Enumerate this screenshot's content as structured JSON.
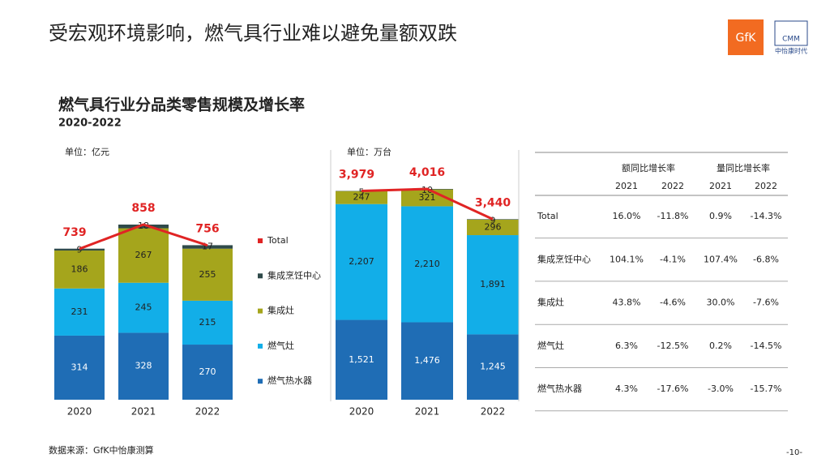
{
  "header": {
    "title": "受宏观环境影响，燃气具行业难以避免量额双跌",
    "logo": "GfK",
    "logo2": "CMM",
    "logo2_sub": "中怡康时代"
  },
  "heading": "燃气具行业分品类零售规模及增长率",
  "subheading": "2020-2022",
  "chart_data": [
    {
      "type": "bar",
      "stacked": true,
      "unit": "单位：亿元",
      "categories": [
        "2020",
        "2021",
        "2022"
      ],
      "series": [
        {
          "name": "燃气热水器",
          "color": "#1f6db5",
          "values": [
            314,
            328,
            270
          ]
        },
        {
          "name": "燃气灶",
          "color": "#12aee8",
          "values": [
            231,
            245,
            215
          ]
        },
        {
          "name": "集成灶",
          "color": "#a5a51c",
          "values": [
            186,
            267,
            255
          ]
        },
        {
          "name": "集成烹饪中心",
          "color": "#2f4a4a",
          "values": [
            9,
            18,
            17
          ]
        },
        {
          "name": "Total",
          "type": "line",
          "color": "#e02424",
          "values": [
            739,
            858,
            756
          ]
        }
      ],
      "legend": true
    },
    {
      "type": "bar",
      "stacked": true,
      "unit": "单位：万台",
      "categories": [
        "2020",
        "2021",
        "2022"
      ],
      "series": [
        {
          "name": "燃气热水器",
          "color": "#1f6db5",
          "values": [
            1521,
            1476,
            1245
          ],
          "value_labels": [
            "1,521",
            "1,476",
            "1,245"
          ]
        },
        {
          "name": "燃气灶",
          "color": "#12aee8",
          "values": [
            2207,
            2210,
            1891
          ],
          "value_labels": [
            "2,207",
            "2,210",
            "1,891"
          ]
        },
        {
          "name": "集成灶",
          "color": "#a5a51c",
          "values": [
            247,
            321,
            296
          ]
        },
        {
          "name": "集成烹饪中心",
          "color": "#2f4a4a",
          "values": [
            5,
            10,
            9
          ]
        },
        {
          "name": "Total",
          "type": "line",
          "color": "#e02424",
          "values": [
            3979,
            4016,
            3440
          ],
          "value_labels": [
            "3,979",
            "4,016",
            "3,440"
          ]
        }
      ],
      "legend": false
    }
  ],
  "table": {
    "groups": [
      "额同比增长率",
      "量同比增长率"
    ],
    "years": [
      "2021",
      "2022",
      "2021",
      "2022"
    ],
    "rows": [
      [
        "Total",
        "16.0%",
        "-11.8%",
        "0.9%",
        "-14.3%"
      ],
      [
        "集成烹饪中心",
        "104.1%",
        "-4.1%",
        "107.4%",
        "-6.8%"
      ],
      [
        "集成灶",
        "43.8%",
        "-4.6%",
        "30.0%",
        "-7.6%"
      ],
      [
        "燃气灶",
        "6.3%",
        "-12.5%",
        "0.2%",
        "-14.5%"
      ],
      [
        "燃气热水器",
        "4.3%",
        "-17.6%",
        "-3.0%",
        "-15.7%"
      ]
    ]
  },
  "source": "数据来源：GfK中怡康测算",
  "page": "-10-"
}
